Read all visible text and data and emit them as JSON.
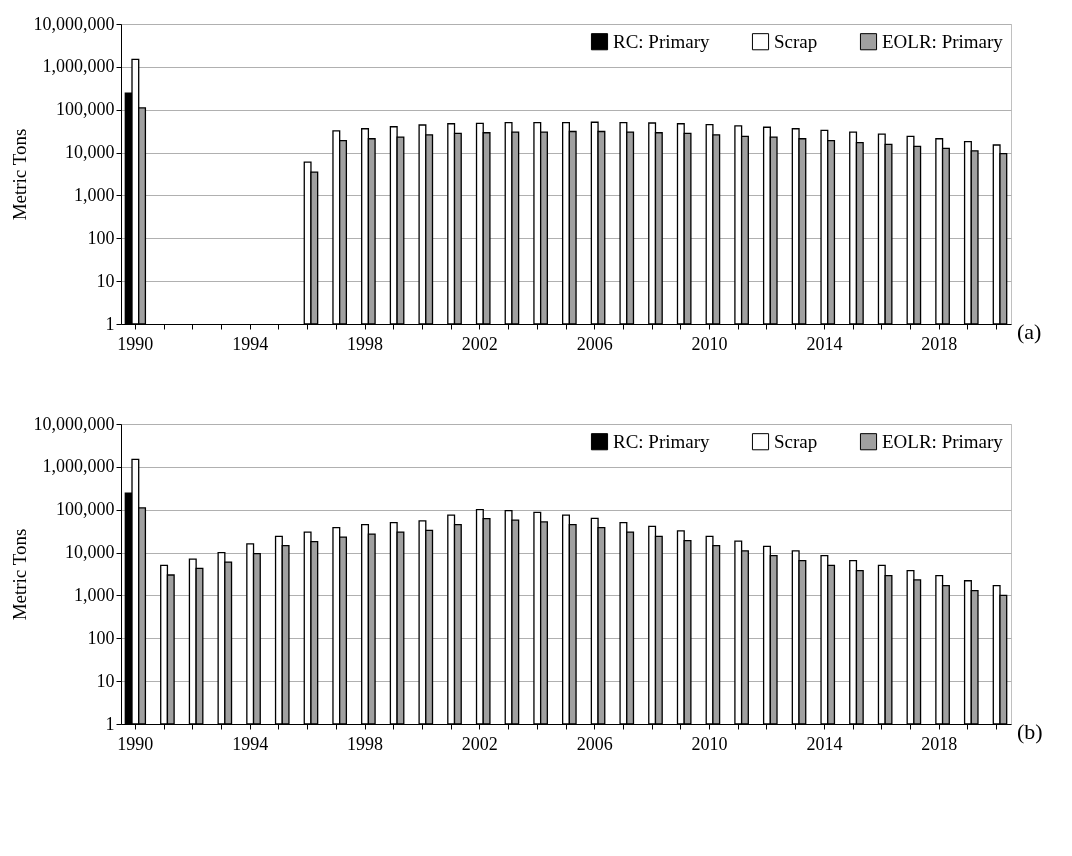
{
  "chart_data": [
    {
      "type": "bar",
      "ylabel": "Metric Tons",
      "log": true,
      "grid": "y",
      "legend": "top right",
      "annotations": [
        "(a)"
      ],
      "categories": [
        "1990",
        null,
        null,
        null,
        "1994",
        null,
        null,
        null,
        "1998",
        null,
        null,
        null,
        "2002",
        null,
        null,
        null,
        "2006",
        null,
        null,
        null,
        "2010",
        null,
        null,
        null,
        "2014",
        null,
        null,
        null,
        "2018",
        null,
        null
      ],
      "ylim": [
        1,
        10000000
      ],
      "yticks": [
        {
          "value": 1,
          "label": "1"
        },
        {
          "value": 10,
          "label": "10"
        },
        {
          "value": 100,
          "label": "100"
        },
        {
          "value": 1000,
          "label": "1,000"
        },
        {
          "value": 10000,
          "label": "10,000"
        },
        {
          "value": 100000,
          "label": "100,000"
        },
        {
          "value": 1000000,
          "label": "1,000,000"
        },
        {
          "value": 10000000,
          "label": "10,000,000"
        }
      ],
      "series": [
        {
          "name": "RC: Primary",
          "color": "#000000",
          "values": [
            245000,
            null,
            null,
            null,
            null,
            null,
            null,
            null,
            null,
            null,
            null,
            null,
            null,
            null,
            null,
            null,
            null,
            null,
            null,
            null,
            null,
            null,
            null,
            null,
            null,
            null,
            null,
            null,
            null,
            null,
            null
          ]
        },
        {
          "name": "Scrap",
          "color": "#ffffff",
          "values": [
            1500000,
            null,
            null,
            null,
            null,
            null,
            6000,
            32000,
            36000,
            40000,
            44000,
            47000,
            48000,
            50000,
            50000,
            50000,
            51000,
            50000,
            49000,
            47000,
            45000,
            42000,
            39000,
            36000,
            33000,
            30000,
            27000,
            24000,
            21000,
            18000,
            15000
          ]
        },
        {
          "name": "EOLR: Primary",
          "color": "#a0a0a0",
          "values": [
            110000,
            null,
            null,
            null,
            null,
            null,
            3500,
            19000,
            21000,
            23000,
            26000,
            28000,
            29000,
            30000,
            30000,
            31000,
            31000,
            30000,
            29000,
            28000,
            26000,
            24000,
            23000,
            21000,
            19000,
            17000,
            15500,
            14000,
            12500,
            11000,
            9500
          ]
        }
      ]
    },
    {
      "type": "bar",
      "ylabel": "Metric Tons",
      "log": true,
      "grid": "y",
      "legend": "top right",
      "annotations": [
        "(b)"
      ],
      "categories": [
        "1990",
        null,
        null,
        null,
        "1994",
        null,
        null,
        null,
        "1998",
        null,
        null,
        null,
        "2002",
        null,
        null,
        null,
        "2006",
        null,
        null,
        null,
        "2010",
        null,
        null,
        null,
        "2014",
        null,
        null,
        null,
        "2018",
        null,
        null
      ],
      "ylim": [
        1,
        10000000
      ],
      "yticks": [
        {
          "value": 1,
          "label": "1"
        },
        {
          "value": 10,
          "label": "10"
        },
        {
          "value": 100,
          "label": "100"
        },
        {
          "value": 1000,
          "label": "1,000"
        },
        {
          "value": 10000,
          "label": "10,000"
        },
        {
          "value": 100000,
          "label": "100,000"
        },
        {
          "value": 1000000,
          "label": "1,000,000"
        },
        {
          "value": 10000000,
          "label": "10,000,000"
        }
      ],
      "series": [
        {
          "name": "RC: Primary",
          "color": "#000000",
          "values": [
            245000,
            null,
            null,
            null,
            null,
            null,
            null,
            null,
            null,
            null,
            null,
            null,
            null,
            null,
            null,
            null,
            null,
            null,
            null,
            null,
            null,
            null,
            null,
            null,
            null,
            null,
            null,
            null,
            null,
            null,
            null
          ]
        },
        {
          "name": "Scrap",
          "color": "#ffffff",
          "values": [
            1500000,
            5000,
            7000,
            10000,
            16000,
            24000,
            30000,
            38000,
            45000,
            50000,
            55000,
            75000,
            100000,
            95000,
            87000,
            75000,
            63000,
            50000,
            41000,
            32000,
            24000,
            18500,
            14000,
            11000,
            8500,
            6500,
            5000,
            3800,
            2900,
            2200,
            1700
          ]
        },
        {
          "name": "EOLR: Primary",
          "color": "#a0a0a0",
          "values": [
            110000,
            3000,
            4300,
            6000,
            9500,
            14500,
            18000,
            23000,
            27000,
            30000,
            33000,
            45000,
            62000,
            57000,
            52000,
            45000,
            38000,
            30000,
            24000,
            19000,
            14500,
            11000,
            8500,
            6500,
            5000,
            3800,
            2900,
            2300,
            1700,
            1300,
            1000
          ]
        }
      ]
    }
  ]
}
